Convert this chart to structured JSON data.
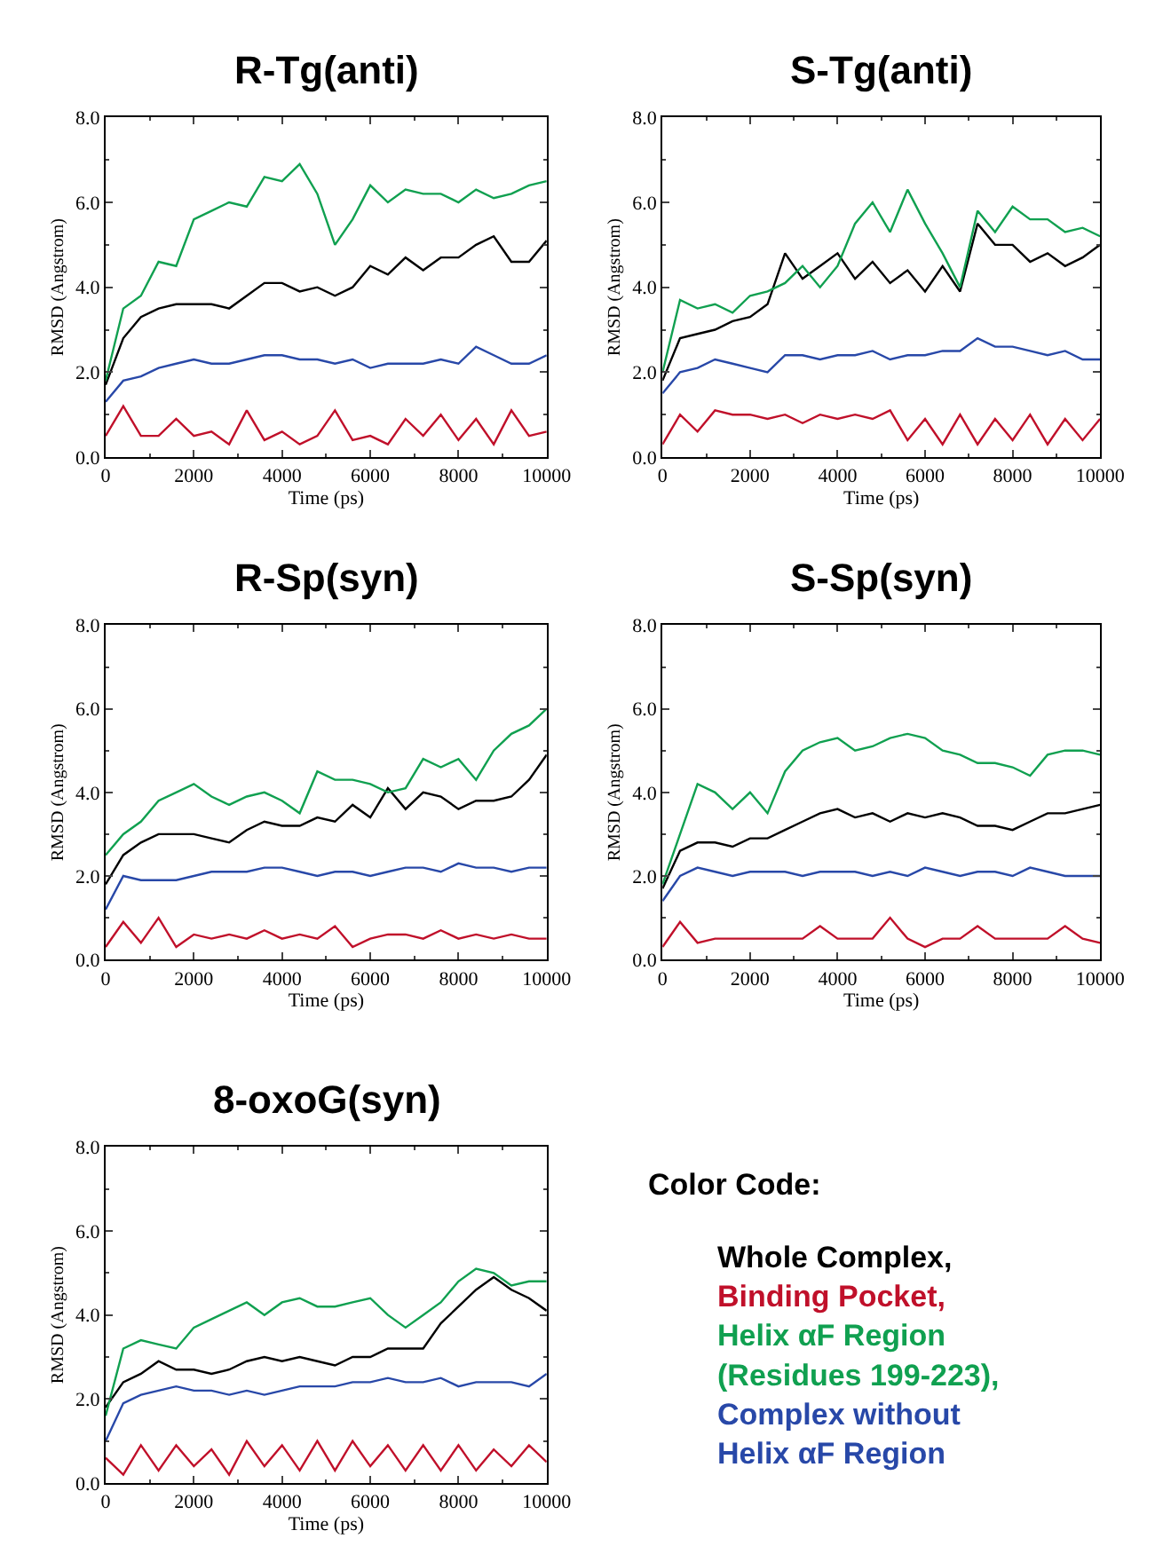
{
  "chart_data": [
    {
      "type": "line",
      "title": "R-Tg(anti)",
      "xlabel": "Time (ps)",
      "ylabel": "RMSD (Angstrom)",
      "xlim": [
        0,
        10000
      ],
      "ylim": [
        0,
        8
      ],
      "xticks": [
        0,
        2000,
        4000,
        6000,
        8000,
        10000
      ],
      "yticks": [
        {
          "value": 0,
          "label": "0.0"
        },
        {
          "value": 2,
          "label": "2.0"
        },
        {
          "value": 4,
          "label": "4.0"
        },
        {
          "value": 6,
          "label": "6.0"
        },
        {
          "value": 8,
          "label": "8.0"
        }
      ],
      "x": [
        0,
        400,
        800,
        1200,
        1600,
        2000,
        2400,
        2800,
        3200,
        3600,
        4000,
        4400,
        4800,
        5200,
        5600,
        6000,
        6400,
        6800,
        7200,
        7600,
        8000,
        8400,
        8800,
        9200,
        9600,
        10000
      ],
      "series": [
        {
          "color": "#000000",
          "values": [
            1.7,
            2.8,
            3.3,
            3.5,
            3.6,
            3.6,
            3.6,
            3.5,
            3.8,
            4.1,
            4.1,
            3.9,
            4.0,
            3.8,
            4.0,
            4.5,
            4.3,
            4.7,
            4.4,
            4.7,
            4.7,
            5.0,
            5.2,
            4.6,
            4.6,
            5.1
          ]
        },
        {
          "color": "#c0102a",
          "values": [
            0.5,
            1.2,
            0.5,
            0.5,
            0.9,
            0.5,
            0.6,
            0.3,
            1.1,
            0.4,
            0.6,
            0.3,
            0.5,
            1.1,
            0.4,
            0.5,
            0.3,
            0.9,
            0.5,
            1.0,
            0.4,
            0.9,
            0.3,
            1.1,
            0.5,
            0.6
          ]
        },
        {
          "color": "#10a050",
          "values": [
            1.8,
            3.5,
            3.8,
            4.6,
            4.5,
            5.6,
            5.8,
            6.0,
            5.9,
            6.6,
            6.5,
            6.9,
            6.2,
            5.0,
            5.6,
            6.4,
            6.0,
            6.3,
            6.2,
            6.2,
            6.0,
            6.3,
            6.1,
            6.2,
            6.4,
            6.5
          ]
        },
        {
          "color": "#2848a8",
          "values": [
            1.3,
            1.8,
            1.9,
            2.1,
            2.2,
            2.3,
            2.2,
            2.2,
            2.3,
            2.4,
            2.4,
            2.3,
            2.3,
            2.2,
            2.3,
            2.1,
            2.2,
            2.2,
            2.2,
            2.3,
            2.2,
            2.6,
            2.4,
            2.2,
            2.2,
            2.4
          ]
        }
      ]
    },
    {
      "type": "line",
      "title": "S-Tg(anti)",
      "xlabel": "Time (ps)",
      "ylabel": "RMSD (Angstrom)",
      "xlim": [
        0,
        10000
      ],
      "ylim": [
        0,
        8
      ],
      "xticks": [
        0,
        2000,
        4000,
        6000,
        8000,
        10000
      ],
      "yticks": [
        {
          "value": 0,
          "label": "0.0"
        },
        {
          "value": 2,
          "label": "2.0"
        },
        {
          "value": 4,
          "label": "4.0"
        },
        {
          "value": 6,
          "label": "6.0"
        },
        {
          "value": 8,
          "label": "8.0"
        }
      ],
      "x": [
        0,
        400,
        800,
        1200,
        1600,
        2000,
        2400,
        2800,
        3200,
        3600,
        4000,
        4400,
        4800,
        5200,
        5600,
        6000,
        6400,
        6800,
        7200,
        7600,
        8000,
        8400,
        8800,
        9200,
        9600,
        10000
      ],
      "series": [
        {
          "color": "#000000",
          "values": [
            1.8,
            2.8,
            2.9,
            3.0,
            3.2,
            3.3,
            3.6,
            4.8,
            4.2,
            4.5,
            4.8,
            4.2,
            4.6,
            4.1,
            4.4,
            3.9,
            4.5,
            3.9,
            5.5,
            5.0,
            5.0,
            4.6,
            4.8,
            4.5,
            4.7,
            5.0
          ]
        },
        {
          "color": "#c0102a",
          "values": [
            0.3,
            1.0,
            0.6,
            1.1,
            1.0,
            1.0,
            0.9,
            1.0,
            0.8,
            1.0,
            0.9,
            1.0,
            0.9,
            1.1,
            0.4,
            0.9,
            0.3,
            1.0,
            0.3,
            0.9,
            0.4,
            1.0,
            0.3,
            0.9,
            0.4,
            0.9
          ]
        },
        {
          "color": "#10a050",
          "values": [
            2.0,
            3.7,
            3.5,
            3.6,
            3.4,
            3.8,
            3.9,
            4.1,
            4.5,
            4.0,
            4.5,
            5.5,
            6.0,
            5.3,
            6.3,
            5.5,
            4.8,
            4.0,
            5.8,
            5.3,
            5.9,
            5.6,
            5.6,
            5.3,
            5.4,
            5.2
          ]
        },
        {
          "color": "#2848a8",
          "values": [
            1.5,
            2.0,
            2.1,
            2.3,
            2.2,
            2.1,
            2.0,
            2.4,
            2.4,
            2.3,
            2.4,
            2.4,
            2.5,
            2.3,
            2.4,
            2.4,
            2.5,
            2.5,
            2.8,
            2.6,
            2.6,
            2.5,
            2.4,
            2.5,
            2.3,
            2.3
          ]
        }
      ]
    },
    {
      "type": "line",
      "title": "R-Sp(syn)",
      "xlabel": "Time (ps)",
      "ylabel": "RMSD (Angstrom)",
      "xlim": [
        0,
        10000
      ],
      "ylim": [
        0,
        8
      ],
      "xticks": [
        0,
        2000,
        4000,
        6000,
        8000,
        10000
      ],
      "yticks": [
        {
          "value": 0,
          "label": "0.0"
        },
        {
          "value": 2,
          "label": "2.0"
        },
        {
          "value": 4,
          "label": "4.0"
        },
        {
          "value": 6,
          "label": "6.0"
        },
        {
          "value": 8,
          "label": "8.0"
        }
      ],
      "x": [
        0,
        400,
        800,
        1200,
        1600,
        2000,
        2400,
        2800,
        3200,
        3600,
        4000,
        4400,
        4800,
        5200,
        5600,
        6000,
        6400,
        6800,
        7200,
        7600,
        8000,
        8400,
        8800,
        9200,
        9600,
        10000
      ],
      "series": [
        {
          "color": "#000000",
          "values": [
            1.8,
            2.5,
            2.8,
            3.0,
            3.0,
            3.0,
            2.9,
            2.8,
            3.1,
            3.3,
            3.2,
            3.2,
            3.4,
            3.3,
            3.7,
            3.4,
            4.1,
            3.6,
            4.0,
            3.9,
            3.6,
            3.8,
            3.8,
            3.9,
            4.3,
            4.9
          ]
        },
        {
          "color": "#c0102a",
          "values": [
            0.3,
            0.9,
            0.4,
            1.0,
            0.3,
            0.6,
            0.5,
            0.6,
            0.5,
            0.7,
            0.5,
            0.6,
            0.5,
            0.8,
            0.3,
            0.5,
            0.6,
            0.6,
            0.5,
            0.7,
            0.5,
            0.6,
            0.5,
            0.6,
            0.5,
            0.5
          ]
        },
        {
          "color": "#10a050",
          "values": [
            2.5,
            3.0,
            3.3,
            3.8,
            4.0,
            4.2,
            3.9,
            3.7,
            3.9,
            4.0,
            3.8,
            3.5,
            4.5,
            4.3,
            4.3,
            4.2,
            4.0,
            4.1,
            4.8,
            4.6,
            4.8,
            4.3,
            5.0,
            5.4,
            5.6,
            6.0
          ]
        },
        {
          "color": "#2848a8",
          "values": [
            1.2,
            2.0,
            1.9,
            1.9,
            1.9,
            2.0,
            2.1,
            2.1,
            2.1,
            2.2,
            2.2,
            2.1,
            2.0,
            2.1,
            2.1,
            2.0,
            2.1,
            2.2,
            2.2,
            2.1,
            2.3,
            2.2,
            2.2,
            2.1,
            2.2,
            2.2
          ]
        }
      ]
    },
    {
      "type": "line",
      "title": "S-Sp(syn)",
      "xlabel": "Time (ps)",
      "ylabel": "RMSD (Angstrom)",
      "xlim": [
        0,
        10000
      ],
      "ylim": [
        0,
        8
      ],
      "xticks": [
        0,
        2000,
        4000,
        6000,
        8000,
        10000
      ],
      "yticks": [
        {
          "value": 0,
          "label": "0.0"
        },
        {
          "value": 2,
          "label": "2.0"
        },
        {
          "value": 4,
          "label": "4.0"
        },
        {
          "value": 6,
          "label": "6.0"
        },
        {
          "value": 8,
          "label": "8.0"
        }
      ],
      "x": [
        0,
        400,
        800,
        1200,
        1600,
        2000,
        2400,
        2800,
        3200,
        3600,
        4000,
        4400,
        4800,
        5200,
        5600,
        6000,
        6400,
        6800,
        7200,
        7600,
        8000,
        8400,
        8800,
        9200,
        9600,
        10000
      ],
      "series": [
        {
          "color": "#000000",
          "values": [
            1.7,
            2.6,
            2.8,
            2.8,
            2.7,
            2.9,
            2.9,
            3.1,
            3.3,
            3.5,
            3.6,
            3.4,
            3.5,
            3.3,
            3.5,
            3.4,
            3.5,
            3.4,
            3.2,
            3.2,
            3.1,
            3.3,
            3.5,
            3.5,
            3.6,
            3.7
          ]
        },
        {
          "color": "#c0102a",
          "values": [
            0.3,
            0.9,
            0.4,
            0.5,
            0.5,
            0.5,
            0.5,
            0.5,
            0.5,
            0.8,
            0.5,
            0.5,
            0.5,
            1.0,
            0.5,
            0.3,
            0.5,
            0.5,
            0.8,
            0.5,
            0.5,
            0.5,
            0.5,
            0.8,
            0.5,
            0.4
          ]
        },
        {
          "color": "#10a050",
          "values": [
            1.8,
            3.0,
            4.2,
            4.0,
            3.6,
            4.0,
            3.5,
            4.5,
            5.0,
            5.2,
            5.3,
            5.0,
            5.1,
            5.3,
            5.4,
            5.3,
            5.0,
            4.9,
            4.7,
            4.7,
            4.6,
            4.4,
            4.9,
            5.0,
            5.0,
            4.9
          ]
        },
        {
          "color": "#2848a8",
          "values": [
            1.4,
            2.0,
            2.2,
            2.1,
            2.0,
            2.1,
            2.1,
            2.1,
            2.0,
            2.1,
            2.1,
            2.1,
            2.0,
            2.1,
            2.0,
            2.2,
            2.1,
            2.0,
            2.1,
            2.1,
            2.0,
            2.2,
            2.1,
            2.0,
            2.0,
            2.0
          ]
        }
      ]
    },
    {
      "type": "line",
      "title": "8-oxoG(syn)",
      "xlabel": "Time (ps)",
      "ylabel": "RMSD (Angstrom)",
      "xlim": [
        0,
        10000
      ],
      "ylim": [
        0,
        8
      ],
      "xticks": [
        0,
        2000,
        4000,
        6000,
        8000,
        10000
      ],
      "yticks": [
        {
          "value": 0,
          "label": "0.0"
        },
        {
          "value": 2,
          "label": "2.0"
        },
        {
          "value": 4,
          "label": "4.0"
        },
        {
          "value": 6,
          "label": "6.0"
        },
        {
          "value": 8,
          "label": "8.0"
        }
      ],
      "legend_title": "Color Code:",
      "x": [
        0,
        400,
        800,
        1200,
        1600,
        2000,
        2400,
        2800,
        3200,
        3600,
        4000,
        4400,
        4800,
        5200,
        5600,
        6000,
        6400,
        6800,
        7200,
        7600,
        8000,
        8400,
        8800,
        9200,
        9600,
        10000
      ],
      "series": [
        {
          "name": "Whole Complex,",
          "color": "#000000",
          "values": [
            1.8,
            2.4,
            2.6,
            2.9,
            2.7,
            2.7,
            2.6,
            2.7,
            2.9,
            3.0,
            2.9,
            3.0,
            2.9,
            2.8,
            3.0,
            3.0,
            3.2,
            3.2,
            3.2,
            3.8,
            4.2,
            4.6,
            4.9,
            4.6,
            4.4,
            4.1
          ]
        },
        {
          "name": "Binding Pocket,",
          "color": "#c0102a",
          "values": [
            0.6,
            0.2,
            0.9,
            0.3,
            0.9,
            0.4,
            0.8,
            0.2,
            1.0,
            0.4,
            0.9,
            0.3,
            1.0,
            0.3,
            1.0,
            0.4,
            0.9,
            0.3,
            0.9,
            0.3,
            0.9,
            0.3,
            0.8,
            0.4,
            0.9,
            0.5
          ]
        },
        {
          "name": "Helix αF Region (Residues 199-223),",
          "color": "#10a050",
          "values": [
            1.6,
            3.2,
            3.4,
            3.3,
            3.2,
            3.7,
            3.9,
            4.1,
            4.3,
            4.0,
            4.3,
            4.4,
            4.2,
            4.2,
            4.3,
            4.4,
            4.0,
            3.7,
            4.0,
            4.3,
            4.8,
            5.1,
            5.0,
            4.7,
            4.8,
            4.8
          ]
        },
        {
          "name": "Complex without Helix αF Region",
          "color": "#2848a8",
          "values": [
            1.0,
            1.9,
            2.1,
            2.2,
            2.3,
            2.2,
            2.2,
            2.1,
            2.2,
            2.1,
            2.2,
            2.3,
            2.3,
            2.3,
            2.4,
            2.4,
            2.5,
            2.4,
            2.4,
            2.5,
            2.3,
            2.4,
            2.4,
            2.4,
            2.3,
            2.6
          ]
        }
      ]
    }
  ]
}
